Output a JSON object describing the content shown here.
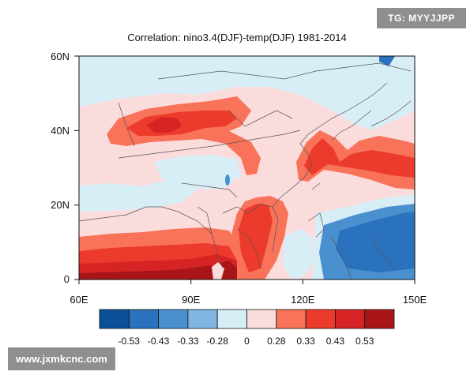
{
  "title": "Correlation: nino3.4(DJF)-temp(DJF) 1981-2014",
  "badge": "TG: MYYJJPP",
  "watermark": "www.jxmkcnc.com",
  "map": {
    "lon_labels": [
      "60E",
      "90E",
      "120E",
      "150E"
    ],
    "lat_labels": [
      "60N",
      "40N",
      "20N",
      "0"
    ],
    "lon_range": [
      60,
      150
    ],
    "lat_range": [
      0,
      60
    ]
  },
  "colorbar": {
    "colors": [
      "#0b4f96",
      "#2a72bd",
      "#4a90cf",
      "#7fb6e2",
      "#d8eef7",
      "#fbdcdc",
      "#f8735a",
      "#ec3a2d",
      "#d62424",
      "#a81418"
    ],
    "labels": [
      "-0.53",
      "-0.43",
      "-0.33",
      "-0.28",
      "0",
      "0.28",
      "0.33",
      "0.43",
      "0.53"
    ]
  }
}
